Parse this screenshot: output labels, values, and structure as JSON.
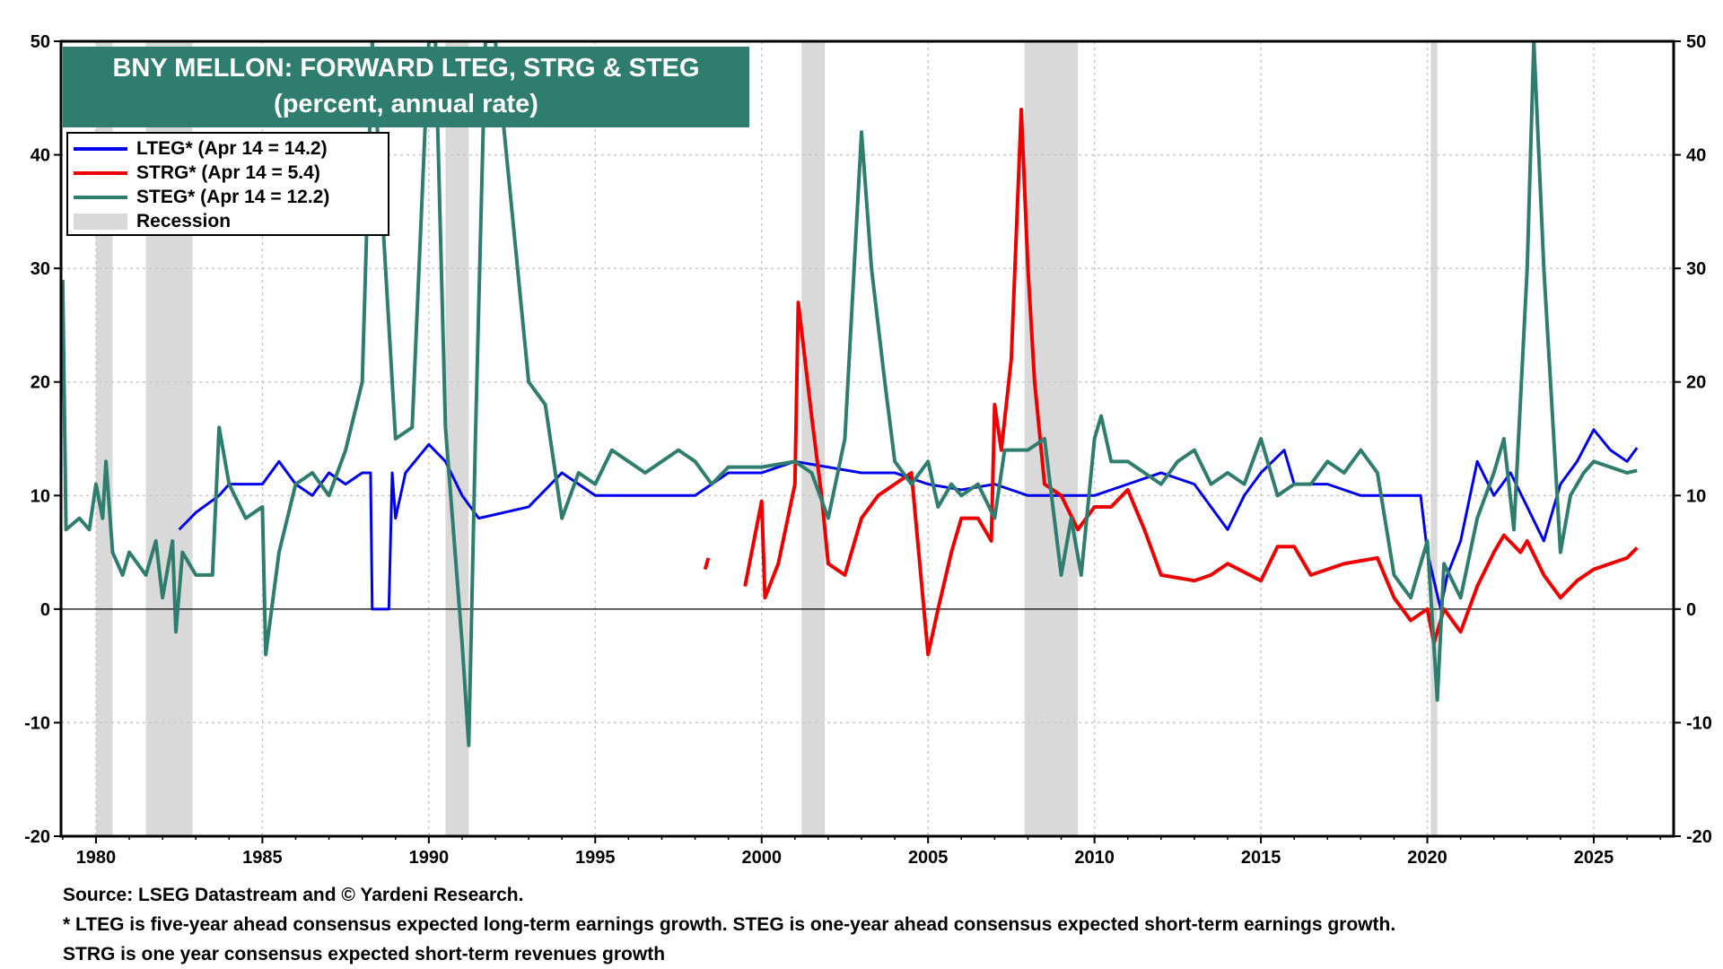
{
  "chart_data": {
    "type": "line",
    "title": "BNY MELLON: FORWARD LTEG, STRG & STEG",
    "subtitle": "(percent, annual rate)",
    "xlim": [
      1978.95,
      2027.4
    ],
    "ylim": [
      -20,
      50
    ],
    "x_ticks": [
      1980,
      1985,
      1990,
      1995,
      2000,
      2005,
      2010,
      2015,
      2020,
      2025
    ],
    "y_ticks": [
      -20,
      -10,
      0,
      10,
      20,
      30,
      40,
      50
    ],
    "grid": true,
    "legend_position": "top-left",
    "legend": [
      {
        "label": "LTEG* (Apr 14 = 14.2)",
        "color": "#0000ee"
      },
      {
        "label": "STRG* (Apr 14 = 5.4)",
        "color": "#ee0000"
      },
      {
        "label": "STEG* (Apr 14 = 12.2)",
        "color": "#2e7d6e"
      },
      {
        "label": "Recession",
        "color": "#d9d9d9"
      }
    ],
    "recessions": [
      [
        1980.0,
        1980.5
      ],
      [
        1981.5,
        1982.9
      ],
      [
        1990.5,
        1991.2
      ],
      [
        2001.2,
        2001.9
      ],
      [
        2007.9,
        2009.5
      ],
      [
        2020.1,
        2020.3
      ]
    ],
    "series": [
      {
        "key": "LTEG",
        "color": "#0000ee",
        "points": [
          [
            1982.5,
            7
          ],
          [
            1983,
            8.5
          ],
          [
            1983.7,
            10
          ],
          [
            1984,
            11
          ],
          [
            1985,
            11
          ],
          [
            1985.5,
            13
          ],
          [
            1986,
            11
          ],
          [
            1986.5,
            10
          ],
          [
            1987,
            12
          ],
          [
            1987.5,
            11
          ],
          [
            1988,
            12
          ],
          [
            1988.25,
            12
          ],
          [
            1988.3,
            0
          ],
          [
            1988.8,
            0
          ],
          [
            1988.9,
            12
          ],
          [
            1989,
            8
          ],
          [
            1989.3,
            12
          ],
          [
            1990,
            14.5
          ],
          [
            1990.5,
            13
          ],
          [
            1991,
            10
          ],
          [
            1991.5,
            8
          ],
          [
            1993,
            9
          ],
          [
            1994,
            12
          ],
          [
            1995,
            10
          ],
          [
            1998,
            10
          ],
          [
            1999,
            12
          ],
          [
            2000,
            12
          ],
          [
            2001,
            13
          ],
          [
            2003,
            12
          ],
          [
            2004,
            12
          ],
          [
            2005,
            11
          ],
          [
            2006,
            10.5
          ],
          [
            2007,
            11
          ],
          [
            2008,
            10
          ],
          [
            2010,
            10
          ],
          [
            2011,
            11
          ],
          [
            2012,
            12
          ],
          [
            2013,
            11
          ],
          [
            2014,
            7
          ],
          [
            2014.5,
            10
          ],
          [
            2015,
            12
          ],
          [
            2015.7,
            14
          ],
          [
            2016,
            11
          ],
          [
            2017,
            11
          ],
          [
            2018,
            10
          ],
          [
            2019.8,
            10
          ],
          [
            2020,
            5
          ],
          [
            2020.4,
            0
          ],
          [
            2020.6,
            3
          ],
          [
            2021,
            6
          ],
          [
            2021.5,
            13
          ],
          [
            2022,
            10
          ],
          [
            2022.5,
            12
          ],
          [
            2023,
            9
          ],
          [
            2023.5,
            6
          ],
          [
            2024,
            11
          ],
          [
            2024.5,
            13
          ],
          [
            2025,
            15.8
          ],
          [
            2025.5,
            14
          ],
          [
            2026,
            13
          ],
          [
            2026.3,
            14.2
          ]
        ]
      },
      {
        "key": "STRG",
        "color": "#ee0000",
        "segments": [
          [
            [
              1998.3,
              3.5
            ],
            [
              1998.4,
              4.5
            ]
          ],
          [
            [
              1999.5,
              2
            ],
            [
              2000,
              9.5
            ],
            [
              2000.1,
              1
            ],
            [
              2000.5,
              4
            ],
            [
              2001,
              11
            ],
            [
              2001.1,
              27
            ],
            [
              2001.5,
              17
            ],
            [
              2001.8,
              10
            ],
            [
              2002,
              4
            ],
            [
              2002.5,
              3
            ],
            [
              2003,
              8
            ],
            [
              2003.5,
              10
            ],
            [
              2004,
              11
            ],
            [
              2004.5,
              12
            ],
            [
              2005,
              -4
            ],
            [
              2005.3,
              0
            ],
            [
              2005.7,
              5
            ],
            [
              2006,
              8
            ],
            [
              2006.5,
              8
            ],
            [
              2006.9,
              6
            ],
            [
              2007,
              18
            ],
            [
              2007.2,
              14
            ],
            [
              2007.5,
              22
            ],
            [
              2007.8,
              44
            ],
            [
              2008,
              30
            ],
            [
              2008.2,
              20
            ],
            [
              2008.5,
              11
            ],
            [
              2009,
              10
            ],
            [
              2009.5,
              7
            ],
            [
              2010,
              9
            ],
            [
              2010.5,
              9
            ],
            [
              2011,
              10.5
            ],
            [
              2011.5,
              7
            ],
            [
              2012,
              3
            ],
            [
              2013,
              2.5
            ],
            [
              2013.5,
              3
            ],
            [
              2014,
              4
            ],
            [
              2015,
              2.5
            ],
            [
              2015.5,
              5.5
            ],
            [
              2016,
              5.5
            ],
            [
              2016.5,
              3
            ],
            [
              2017.5,
              4
            ],
            [
              2018.5,
              4.5
            ],
            [
              2019,
              1
            ],
            [
              2019.5,
              -1
            ],
            [
              2020,
              0
            ],
            [
              2020.2,
              -3
            ],
            [
              2020.5,
              0
            ],
            [
              2021,
              -2
            ],
            [
              2021.5,
              2
            ],
            [
              2022,
              5
            ],
            [
              2022.3,
              6.5
            ],
            [
              2022.8,
              5
            ],
            [
              2023,
              6
            ],
            [
              2023.5,
              3
            ],
            [
              2024,
              1
            ],
            [
              2024.5,
              2.5
            ],
            [
              2025,
              3.5
            ],
            [
              2026,
              4.5
            ],
            [
              2026.3,
              5.4
            ]
          ]
        ]
      },
      {
        "key": "STEG",
        "color": "#2e7d6e",
        "points": [
          [
            1979,
            29
          ],
          [
            1979.1,
            7
          ],
          [
            1979.5,
            8
          ],
          [
            1979.8,
            7
          ],
          [
            1980,
            11
          ],
          [
            1980.2,
            8
          ],
          [
            1980.3,
            13
          ],
          [
            1980.5,
            5
          ],
          [
            1980.8,
            3
          ],
          [
            1981,
            5
          ],
          [
            1981.5,
            3
          ],
          [
            1981.8,
            6
          ],
          [
            1982,
            1
          ],
          [
            1982.3,
            6
          ],
          [
            1982.4,
            -2
          ],
          [
            1982.6,
            5
          ],
          [
            1983,
            3
          ],
          [
            1983.5,
            3
          ],
          [
            1983.7,
            16
          ],
          [
            1984,
            11
          ],
          [
            1984.5,
            8
          ],
          [
            1985,
            9
          ],
          [
            1985.1,
            -4
          ],
          [
            1985.5,
            5
          ],
          [
            1986,
            11
          ],
          [
            1986.5,
            12
          ],
          [
            1987,
            10
          ],
          [
            1987.5,
            14
          ],
          [
            1988,
            20
          ],
          [
            1988.3,
            50
          ],
          [
            1988.7,
            30
          ],
          [
            1989,
            15
          ],
          [
            1989.5,
            16
          ],
          [
            1990,
            50
          ],
          [
            1990.2,
            50
          ],
          [
            1990.5,
            16
          ],
          [
            1991,
            -3
          ],
          [
            1991.2,
            -12
          ],
          [
            1991.4,
            15
          ],
          [
            1991.7,
            50
          ],
          [
            1992,
            50
          ],
          [
            1992.5,
            35
          ],
          [
            1993,
            20
          ],
          [
            1993.5,
            18
          ],
          [
            1994,
            8
          ],
          [
            1994.5,
            12
          ],
          [
            1995,
            11
          ],
          [
            1995.5,
            14
          ],
          [
            1996,
            13
          ],
          [
            1996.5,
            12
          ],
          [
            1997,
            13
          ],
          [
            1997.5,
            14
          ],
          [
            1998,
            13
          ],
          [
            1998.5,
            11
          ],
          [
            1999,
            12.5
          ],
          [
            2000,
            12.5
          ],
          [
            2001,
            13
          ],
          [
            2001.5,
            12
          ],
          [
            2002,
            8
          ],
          [
            2002.5,
            15
          ],
          [
            2003,
            42
          ],
          [
            2003.3,
            30
          ],
          [
            2003.7,
            20
          ],
          [
            2004,
            13
          ],
          [
            2004.5,
            11
          ],
          [
            2005,
            13
          ],
          [
            2005.3,
            9
          ],
          [
            2005.7,
            11
          ],
          [
            2006,
            10
          ],
          [
            2006.5,
            11
          ],
          [
            2007,
            8
          ],
          [
            2007.3,
            14
          ],
          [
            2008,
            14
          ],
          [
            2008.5,
            15
          ],
          [
            2009,
            3
          ],
          [
            2009.3,
            8
          ],
          [
            2009.6,
            3
          ],
          [
            2010,
            15
          ],
          [
            2010.2,
            17
          ],
          [
            2010.5,
            13
          ],
          [
            2011,
            13
          ],
          [
            2011.5,
            12
          ],
          [
            2012,
            11
          ],
          [
            2012.5,
            13
          ],
          [
            2013,
            14
          ],
          [
            2013.5,
            11
          ],
          [
            2014,
            12
          ],
          [
            2014.5,
            11
          ],
          [
            2015,
            15
          ],
          [
            2015.5,
            10
          ],
          [
            2016,
            11
          ],
          [
            2016.5,
            11
          ],
          [
            2017,
            13
          ],
          [
            2017.5,
            12
          ],
          [
            2018,
            14
          ],
          [
            2018.5,
            12
          ],
          [
            2019,
            3
          ],
          [
            2019.5,
            1
          ],
          [
            2020,
            6
          ],
          [
            2020.3,
            -8
          ],
          [
            2020.5,
            4
          ],
          [
            2021,
            1
          ],
          [
            2021.5,
            8
          ],
          [
            2022,
            12
          ],
          [
            2022.3,
            15
          ],
          [
            2022.6,
            7
          ],
          [
            2023,
            30
          ],
          [
            2023.2,
            50
          ],
          [
            2023.5,
            30
          ],
          [
            2024,
            5
          ],
          [
            2024.3,
            10
          ],
          [
            2024.7,
            12
          ],
          [
            2025,
            13
          ],
          [
            2025.5,
            12.5
          ],
          [
            2026,
            12
          ],
          [
            2026.3,
            12.2
          ]
        ]
      }
    ]
  },
  "footer": {
    "source": "Source: LSEG Datastream and © Yardeni Research.",
    "note1": "* LTEG is five-year ahead consensus expected long-term earnings growth. STEG is one-year ahead consensus expected short-term earnings growth.",
    "note2": "STRG is one year consensus expected short-term revenues growth"
  }
}
